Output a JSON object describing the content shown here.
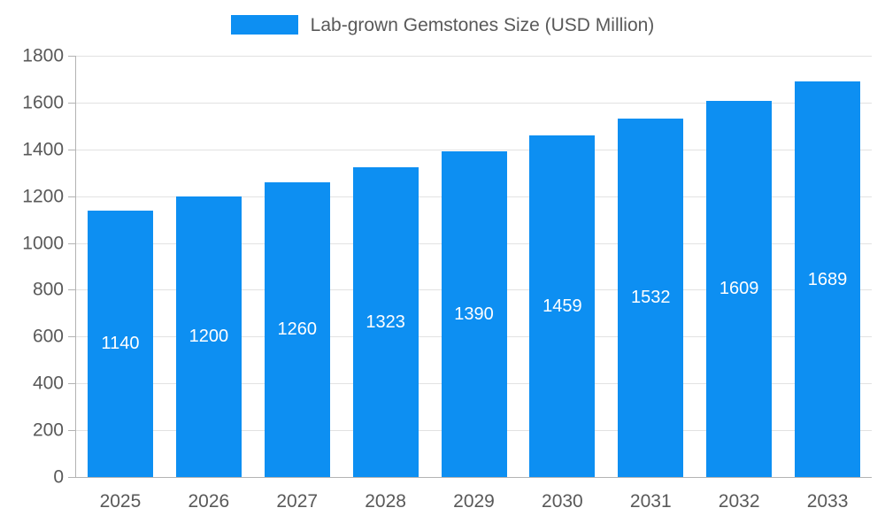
{
  "chart_data": {
    "type": "bar",
    "title": "Lab-grown Gemstones Size (USD Million)",
    "categories": [
      "2025",
      "2026",
      "2027",
      "2028",
      "2029",
      "2030",
      "2031",
      "2032",
      "2033"
    ],
    "values": [
      1140,
      1200,
      1260,
      1323,
      1390,
      1459,
      1532,
      1609,
      1689
    ],
    "value_labels_shown": true,
    "xlabel": "",
    "ylabel": "",
    "ylim": [
      0,
      1800
    ],
    "ytick_step": 200,
    "yticks": [
      0,
      200,
      400,
      600,
      800,
      1000,
      1200,
      1400,
      1600,
      1800
    ],
    "grid": true,
    "legend_position": "top",
    "colors": {
      "bar": "#0d8ff2",
      "bar_label": "#ffffff",
      "axis_text": "#595959",
      "grid_line": "#e2e2e2",
      "axis_line": "#b3b3b3",
      "background": "#ffffff"
    }
  }
}
